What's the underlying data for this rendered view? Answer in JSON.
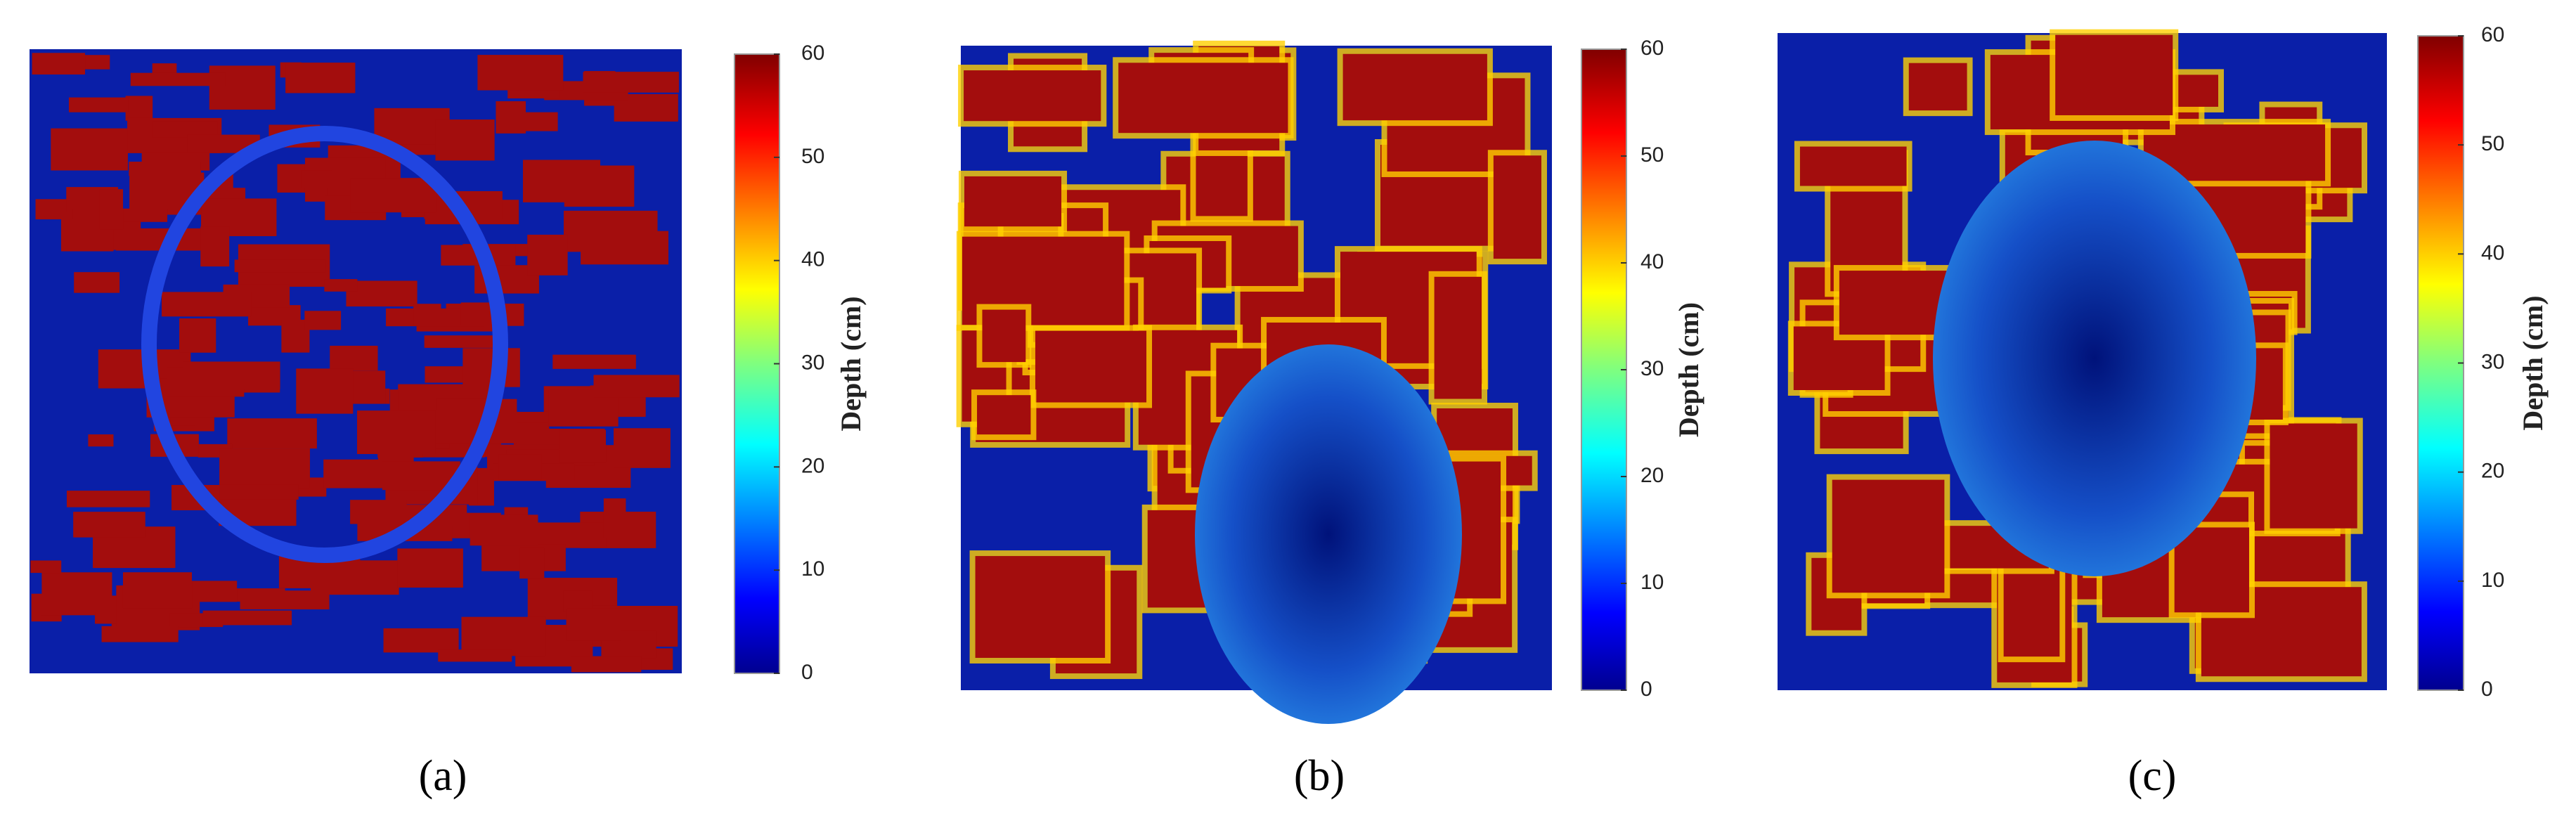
{
  "chart_data": [
    {
      "type": "heatmap",
      "caption": "(a)",
      "zlabel": "Depth (cm)",
      "zlim": [
        0,
        60
      ],
      "zticks": [
        0,
        10,
        20,
        30,
        40,
        50,
        60
      ],
      "colormap": "jet"
    },
    {
      "type": "heatmap",
      "caption": "(b)",
      "zlabel": "Depth (cm)",
      "zlim": [
        0,
        60
      ],
      "zticks": [
        0,
        10,
        20,
        30,
        40,
        50,
        60
      ],
      "colormap": "jet"
    },
    {
      "type": "heatmap",
      "caption": "(c)",
      "zlabel": "Depth (cm)",
      "zlim": [
        0,
        60
      ],
      "zticks": [
        0,
        10,
        20,
        30,
        40,
        50,
        60
      ],
      "colormap": "jet"
    }
  ]
}
